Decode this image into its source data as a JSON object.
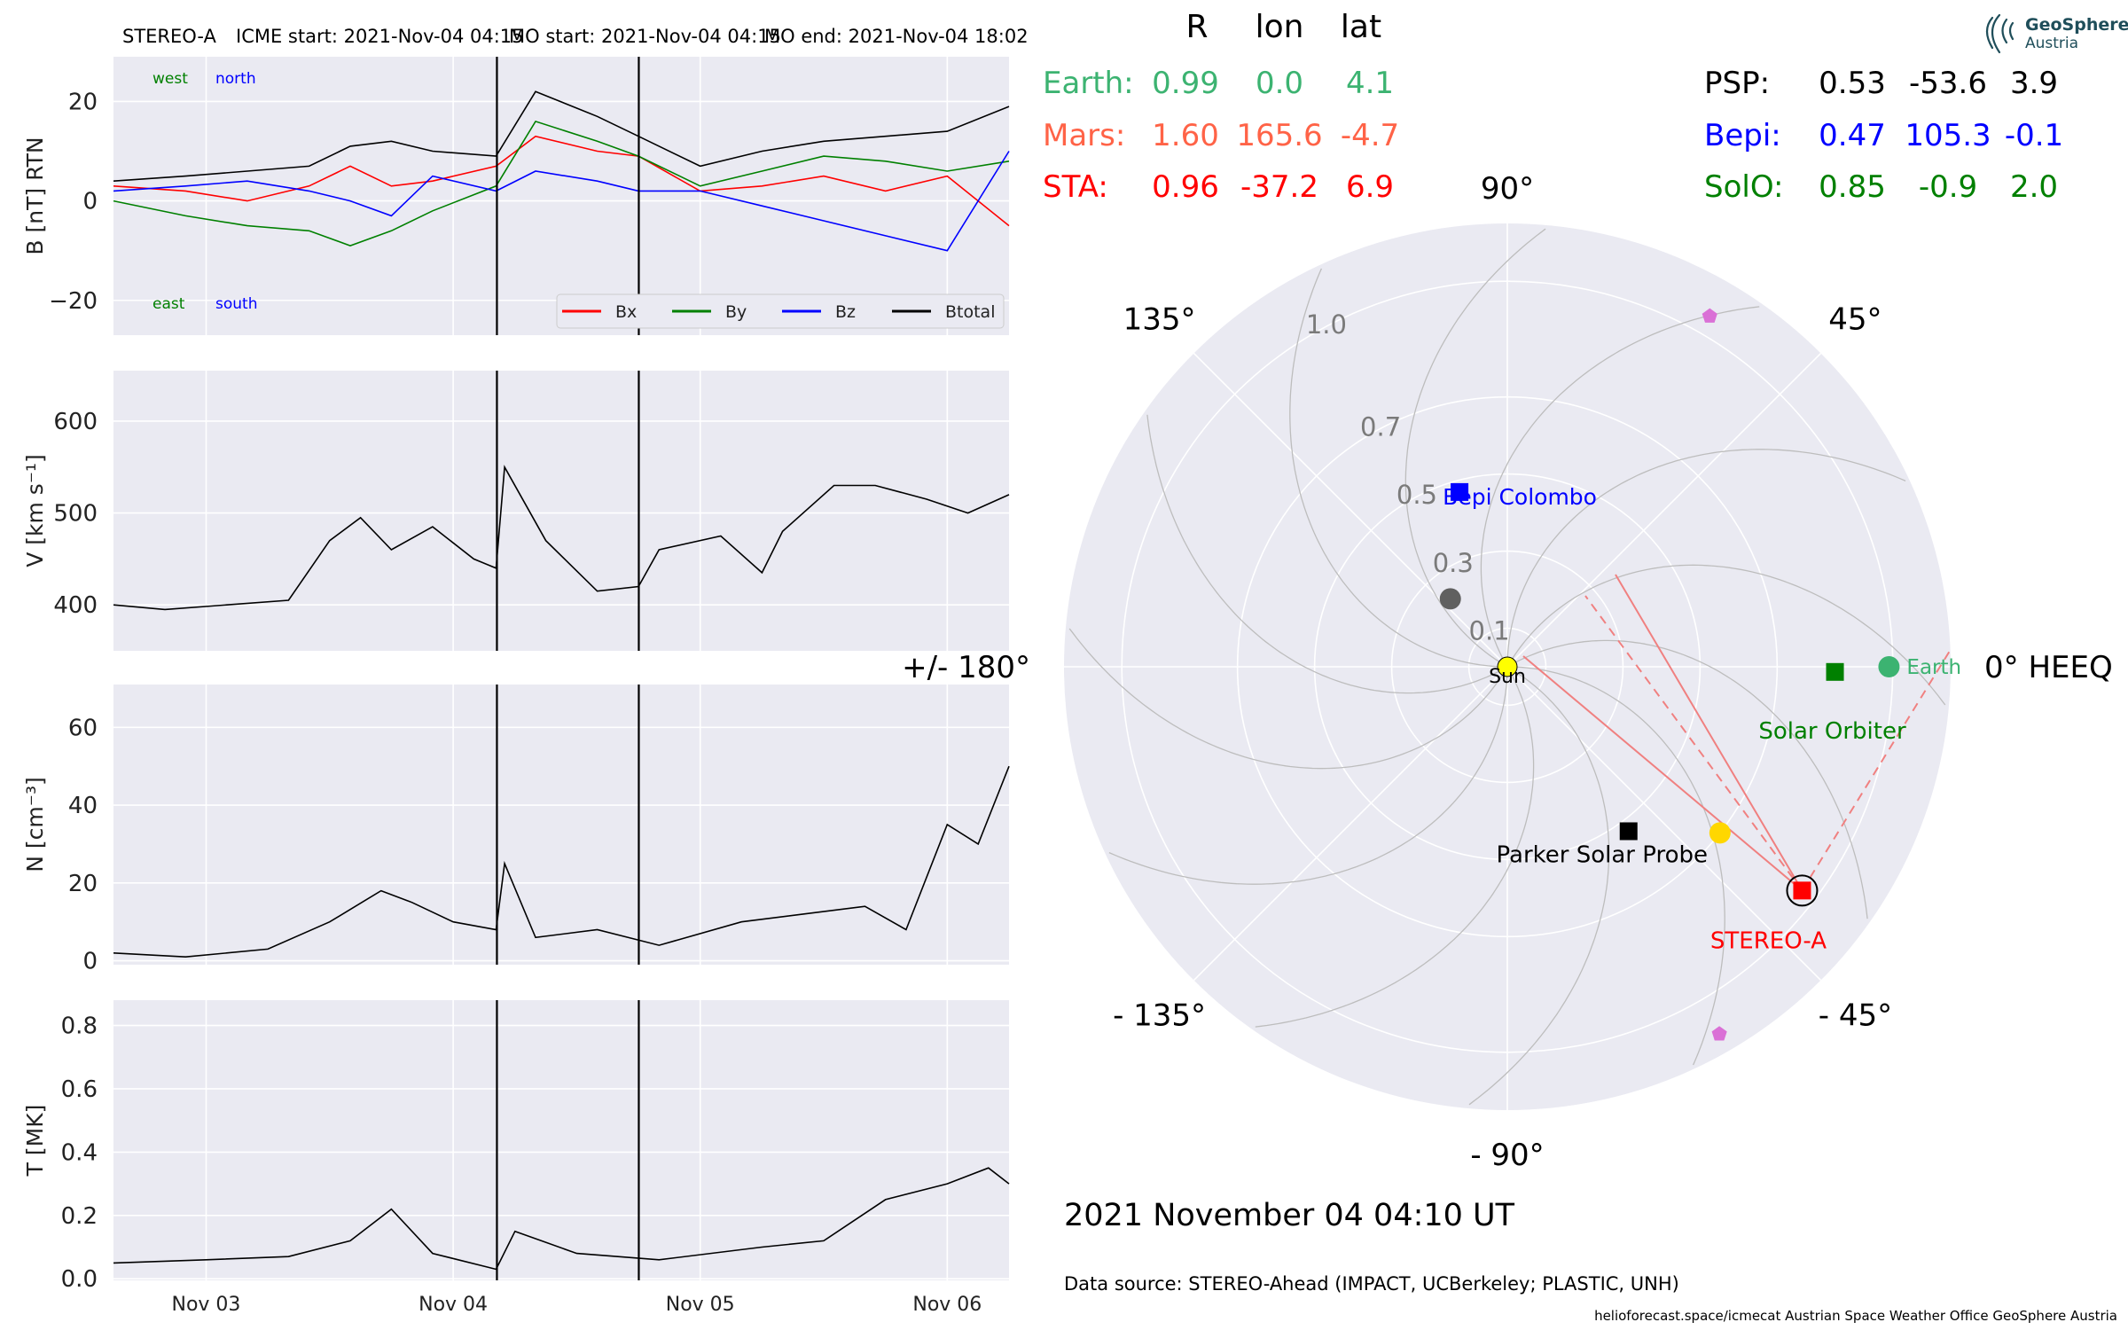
{
  "header": {
    "spacecraft": "STEREO-A",
    "icme_start": "ICME start: 2021-Nov-04 04:15",
    "mo_start": "MO start: 2021-Nov-04 04:15",
    "mo_end": "MO end: 2021-Nov-04 18:02"
  },
  "position_table": {
    "columns": [
      "R",
      "lon",
      "lat"
    ],
    "rows": [
      {
        "name": "Earth:",
        "R": "0.99",
        "lon": "0.0",
        "lat": "4.1",
        "color": "#3cb371"
      },
      {
        "name": "Mars:",
        "R": "1.60",
        "lon": "165.6",
        "lat": "-4.7",
        "color": "#ff6347"
      },
      {
        "name": "STA:",
        "R": "0.96",
        "lon": "-37.2",
        "lat": "6.9",
        "color": "#ff0000"
      },
      {
        "name": "PSP:",
        "R": "0.53",
        "lon": "-53.6",
        "lat": "3.9",
        "color": "#000000"
      },
      {
        "name": "Bepi:",
        "R": "0.47",
        "lon": "105.3",
        "lat": "-0.1",
        "color": "#0000ff"
      },
      {
        "name": "SolO:",
        "R": "0.85",
        "lon": "-0.9",
        "lat": "2.0",
        "color": "#008000"
      }
    ]
  },
  "logo": {
    "line1": "GeoSphere",
    "line2": "Austria"
  },
  "date_label": "2021 November 04  04:10 UT",
  "data_source": "Data source: STEREO-Ahead (IMPACT, UCBerkeley; PLASTIC, UNH)",
  "footer": "helioforecast.space/icmecat   Austrian Space Weather Office   GeoSphere Austria",
  "chart_data": [
    {
      "type": "line",
      "id": "B",
      "ylabel": "B [nT] RTN",
      "ylim": [
        -27,
        29
      ],
      "yticks": [
        -20,
        0,
        20
      ],
      "ytick_labels": [
        "−20",
        "0",
        "20"
      ],
      "x_range_days": [
        "2021-11-02T15:00",
        "2021-11-06T06:00"
      ],
      "annotations": [
        {
          "text": "west",
          "color": "#008000"
        },
        {
          "text": "north",
          "color": "#0000ff"
        },
        {
          "text": "east",
          "color": "#008000"
        },
        {
          "text": "south",
          "color": "#0000ff"
        }
      ],
      "legend": {
        "placement": "lower right"
      },
      "series": [
        {
          "name": "Bx",
          "color": "#ff0000",
          "x": [
            "2021-11-02T15:00",
            "2021-11-02T22:00",
            "2021-11-03T04:00",
            "2021-11-03T10:00",
            "2021-11-03T14:00",
            "2021-11-03T18:00",
            "2021-11-03T22:00",
            "2021-11-04T04:10",
            "2021-11-04T08:00",
            "2021-11-04T14:00",
            "2021-11-04T18:00",
            "2021-11-05T00:00",
            "2021-11-05T06:00",
            "2021-11-05T12:00",
            "2021-11-05T18:00",
            "2021-11-06T00:00",
            "2021-11-06T06:00"
          ],
          "y": [
            3,
            2,
            0,
            3,
            7,
            3,
            4,
            7,
            13,
            10,
            9,
            2,
            3,
            5,
            2,
            5,
            -5
          ]
        },
        {
          "name": "By",
          "color": "#008000",
          "x": [
            "2021-11-02T15:00",
            "2021-11-02T22:00",
            "2021-11-03T04:00",
            "2021-11-03T10:00",
            "2021-11-03T14:00",
            "2021-11-03T18:00",
            "2021-11-03T22:00",
            "2021-11-04T04:10",
            "2021-11-04T08:00",
            "2021-11-04T14:00",
            "2021-11-04T18:00",
            "2021-11-05T00:00",
            "2021-11-05T06:00",
            "2021-11-05T12:00",
            "2021-11-05T18:00",
            "2021-11-06T00:00",
            "2021-11-06T06:00"
          ],
          "y": [
            0,
            -3,
            -5,
            -6,
            -9,
            -6,
            -2,
            3,
            16,
            12,
            9,
            3,
            6,
            9,
            8,
            6,
            8
          ]
        },
        {
          "name": "Bz",
          "color": "#0000ff",
          "x": [
            "2021-11-02T15:00",
            "2021-11-02T22:00",
            "2021-11-03T04:00",
            "2021-11-03T10:00",
            "2021-11-03T14:00",
            "2021-11-03T18:00",
            "2021-11-03T22:00",
            "2021-11-04T04:10",
            "2021-11-04T08:00",
            "2021-11-04T14:00",
            "2021-11-04T18:00",
            "2021-11-05T00:00",
            "2021-11-05T06:00",
            "2021-11-05T12:00",
            "2021-11-05T18:00",
            "2021-11-06T00:00",
            "2021-11-06T06:00"
          ],
          "y": [
            2,
            3,
            4,
            2,
            0,
            -3,
            5,
            2,
            6,
            4,
            2,
            2,
            -1,
            -4,
            -7,
            -10,
            10
          ]
        },
        {
          "name": "Btotal",
          "color": "#000000",
          "x": [
            "2021-11-02T15:00",
            "2021-11-02T22:00",
            "2021-11-03T04:00",
            "2021-11-03T10:00",
            "2021-11-03T14:00",
            "2021-11-03T18:00",
            "2021-11-03T22:00",
            "2021-11-04T04:10",
            "2021-11-04T08:00",
            "2021-11-04T14:00",
            "2021-11-04T18:00",
            "2021-11-05T00:00",
            "2021-11-05T06:00",
            "2021-11-05T12:00",
            "2021-11-05T18:00",
            "2021-11-06T00:00",
            "2021-11-06T06:00"
          ],
          "y": [
            4,
            5,
            6,
            7,
            11,
            12,
            10,
            9,
            22,
            17,
            13,
            7,
            10,
            12,
            13,
            14,
            19
          ]
        }
      ]
    },
    {
      "type": "line",
      "id": "V",
      "ylabel": "V [km s⁻¹]",
      "ylim": [
        350,
        655
      ],
      "yticks": [
        400,
        500,
        600
      ],
      "ytick_labels": [
        "400",
        "500",
        "600"
      ],
      "x_range_days": [
        "2021-11-02T15:00",
        "2021-11-06T06:00"
      ],
      "series": [
        {
          "name": "V",
          "color": "#000000",
          "x": [
            "2021-11-02T15:00",
            "2021-11-02T20:00",
            "2021-11-03T02:00",
            "2021-11-03T08:00",
            "2021-11-03T12:00",
            "2021-11-03T15:00",
            "2021-11-03T18:00",
            "2021-11-03T22:00",
            "2021-11-04T02:00",
            "2021-11-04T04:10",
            "2021-11-04T05:00",
            "2021-11-04T09:00",
            "2021-11-04T14:00",
            "2021-11-04T18:00",
            "2021-11-04T20:00",
            "2021-11-05T02:00",
            "2021-11-05T06:00",
            "2021-11-05T08:00",
            "2021-11-05T13:00",
            "2021-11-05T17:00",
            "2021-11-05T22:00",
            "2021-11-06T02:00",
            "2021-11-06T06:00"
          ],
          "y": [
            400,
            395,
            400,
            405,
            470,
            495,
            460,
            485,
            450,
            440,
            550,
            470,
            415,
            420,
            460,
            475,
            435,
            480,
            530,
            530,
            515,
            500,
            520
          ]
        }
      ]
    },
    {
      "type": "line",
      "id": "N",
      "ylabel": "N [cm⁻³]",
      "ylim": [
        -1,
        71
      ],
      "yticks": [
        0,
        20,
        40,
        60
      ],
      "ytick_labels": [
        "0",
        "20",
        "40",
        "60"
      ],
      "x_range_days": [
        "2021-11-02T15:00",
        "2021-11-06T06:00"
      ],
      "series": [
        {
          "name": "N",
          "color": "#000000",
          "x": [
            "2021-11-02T15:00",
            "2021-11-02T22:00",
            "2021-11-03T06:00",
            "2021-11-03T12:00",
            "2021-11-03T17:00",
            "2021-11-03T20:00",
            "2021-11-04T00:00",
            "2021-11-04T04:10",
            "2021-11-04T05:00",
            "2021-11-04T08:00",
            "2021-11-04T14:00",
            "2021-11-04T20:00",
            "2021-11-05T04:00",
            "2021-11-05T10:00",
            "2021-11-05T16:00",
            "2021-11-05T20:00",
            "2021-11-06T00:00",
            "2021-11-06T03:00",
            "2021-11-06T06:00"
          ],
          "y": [
            2,
            1,
            3,
            10,
            18,
            15,
            10,
            8,
            25,
            6,
            8,
            4,
            10,
            12,
            14,
            8,
            35,
            30,
            50
          ]
        }
      ]
    },
    {
      "type": "line",
      "id": "T",
      "ylabel": "T [MK]",
      "ylim": [
        -0.005,
        0.88
      ],
      "yticks": [
        0.0,
        0.2,
        0.4,
        0.6,
        0.8
      ],
      "ytick_labels": [
        "0.0",
        "0.2",
        "0.4",
        "0.6",
        "0.8"
      ],
      "x_range_days": [
        "2021-11-02T15:00",
        "2021-11-06T06:00"
      ],
      "xticks": [
        "2021-11-03T00:00",
        "2021-11-04T00:00",
        "2021-11-05T00:00",
        "2021-11-06T00:00"
      ],
      "xtick_labels": [
        "Nov 03",
        "Nov 04",
        "Nov 05",
        "Nov 06"
      ],
      "series": [
        {
          "name": "T",
          "color": "#000000",
          "x": [
            "2021-11-02T15:00",
            "2021-11-03T00:00",
            "2021-11-03T08:00",
            "2021-11-03T14:00",
            "2021-11-03T18:00",
            "2021-11-03T22:00",
            "2021-11-04T04:10",
            "2021-11-04T06:00",
            "2021-11-04T12:00",
            "2021-11-04T20:00",
            "2021-11-05T06:00",
            "2021-11-05T12:00",
            "2021-11-05T18:00",
            "2021-11-06T00:00",
            "2021-11-06T04:00",
            "2021-11-06T06:00"
          ],
          "y": [
            0.05,
            0.06,
            0.07,
            0.12,
            0.22,
            0.08,
            0.03,
            0.15,
            0.08,
            0.06,
            0.1,
            0.12,
            0.25,
            0.3,
            0.35,
            0.3
          ]
        }
      ]
    },
    {
      "type": "scatter",
      "id": "polar",
      "coordinate_system": "HEEQ",
      "radial_tick_labels": [
        "0.1",
        "0.3",
        "0.5",
        "0.7",
        "1.0"
      ],
      "angle_labels": [
        "0° HEEQ",
        "45°",
        "90°",
        "135°",
        "+/- 180°",
        "- 135°",
        "- 90°",
        "- 45°"
      ],
      "rlim": [
        0,
        1.15
      ],
      "grid": true,
      "objects": [
        {
          "label": "Sun",
          "r": 0.0,
          "lon": 0.0,
          "marker": "circle",
          "color": "#ffff00"
        },
        {
          "label": "Earth",
          "r": 0.99,
          "lon": 0.0,
          "marker": "circle",
          "color": "#3cb371"
        },
        {
          "label": "STEREO-A",
          "r": 0.96,
          "lon": -37.2,
          "marker": "square",
          "color": "#ff0000"
        },
        {
          "label": "Parker Solar Probe",
          "r": 0.53,
          "lon": -53.6,
          "marker": "square",
          "color": "#000000"
        },
        {
          "label": "Bepi Colombo",
          "r": 0.47,
          "lon": 105.3,
          "marker": "square",
          "color": "#0000ff"
        },
        {
          "label": "Solar Orbiter",
          "r": 0.85,
          "lon": -0.9,
          "marker": "square",
          "color": "#008000"
        },
        {
          "label": "",
          "r": 0.23,
          "lon": 130,
          "marker": "circle",
          "color": "#606060"
        },
        {
          "label": "",
          "r": 0.7,
          "lon": -38,
          "marker": "circle",
          "color": "#ffd700"
        },
        {
          "label": "",
          "r": 1.05,
          "lon": 60,
          "marker": "pentagon",
          "color": "#da70d6"
        },
        {
          "label": "",
          "r": 1.1,
          "lon": -60,
          "marker": "pentagon",
          "color": "#da70d6"
        }
      ]
    }
  ]
}
